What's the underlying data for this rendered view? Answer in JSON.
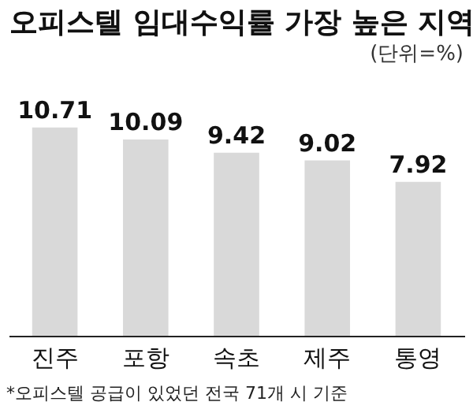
{
  "chart_data": {
    "type": "bar",
    "title": "오피스텔 임대수익률 가장 높은 지역",
    "subtitle": "(단위=%)",
    "categories": [
      "진주",
      "포항",
      "속초",
      "제주",
      "통영"
    ],
    "values": [
      10.71,
      10.09,
      9.42,
      9.02,
      7.92
    ],
    "color": "#d9d9d9",
    "tick_labels": "x",
    "data_labels": true,
    "annotations": [
      "*오피스텔 공급이 있었던 전국 71개 시 기준"
    ]
  }
}
